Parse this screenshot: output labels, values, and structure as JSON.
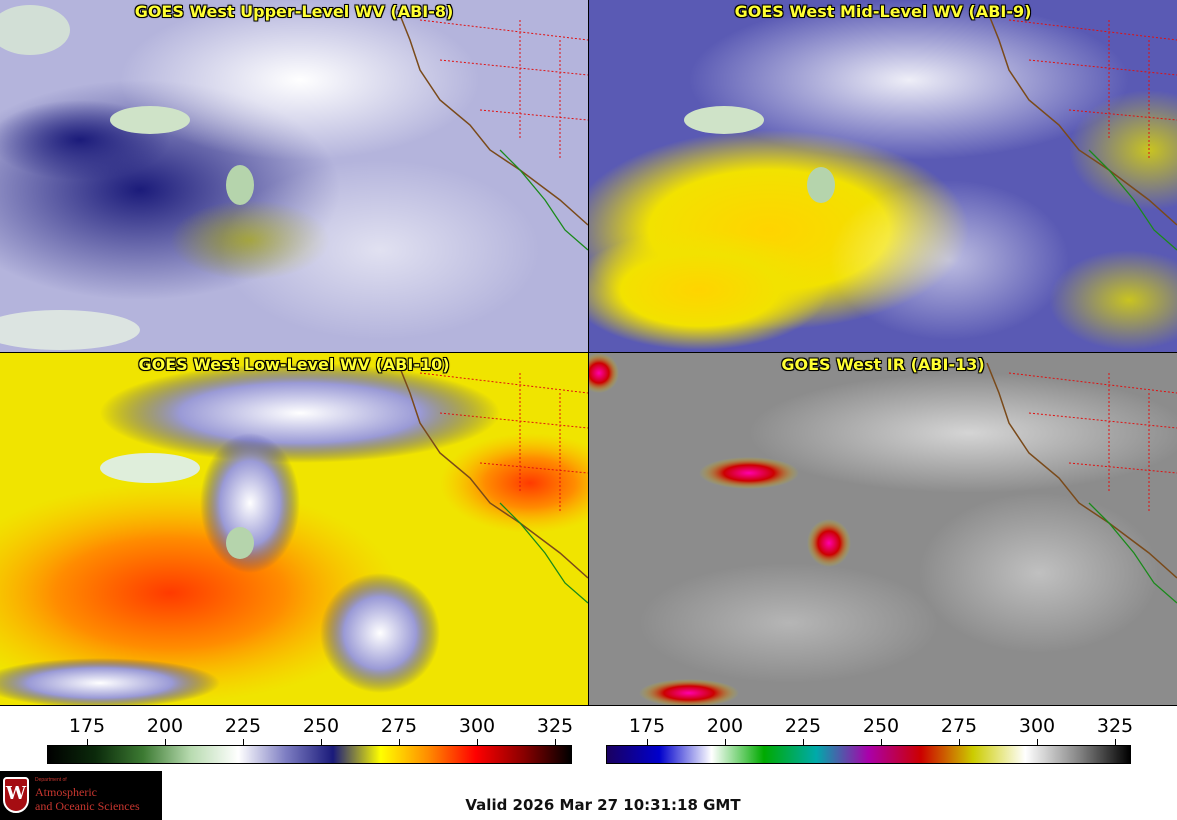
{
  "panels": [
    {
      "title": "GOES West Upper-Level WV (ABI-8)"
    },
    {
      "title": "GOES West Mid-Level WV (ABI-9)"
    },
    {
      "title": "GOES West Low-Level WV (ABI-10)"
    },
    {
      "title": "GOES West IR (ABI-13)"
    }
  ],
  "colorbars": {
    "left": {
      "ticks": [
        "175",
        "200",
        "225",
        "250",
        "275",
        "300",
        "325"
      ]
    },
    "right": {
      "ticks": [
        "175",
        "200",
        "225",
        "250",
        "275",
        "300",
        "325"
      ]
    }
  },
  "valid_time": "Valid 2026 Mar 27 10:31:18 GMT",
  "logo": {
    "crest_letter": "W",
    "department_of": "Department of",
    "line1": "Atmospheric",
    "line2": "and Oceanic Sciences"
  },
  "colors": {
    "wv_scale": [
      "#000000",
      "#0b2a0b",
      "#3c7a32",
      "#b8dbb0",
      "#ffffff",
      "#7d7dc2",
      "#1a1a7a",
      "#ffff00",
      "#ff8c00",
      "#ff0000",
      "#8a0000",
      "#000000"
    ],
    "ir_scale": [
      "#1a0060",
      "#0000cc",
      "#ffffff",
      "#00aa00",
      "#00aaaa",
      "#aa00aa",
      "#cc0000",
      "#cccc00",
      "#ffffff",
      "#888888",
      "#000000"
    ]
  }
}
